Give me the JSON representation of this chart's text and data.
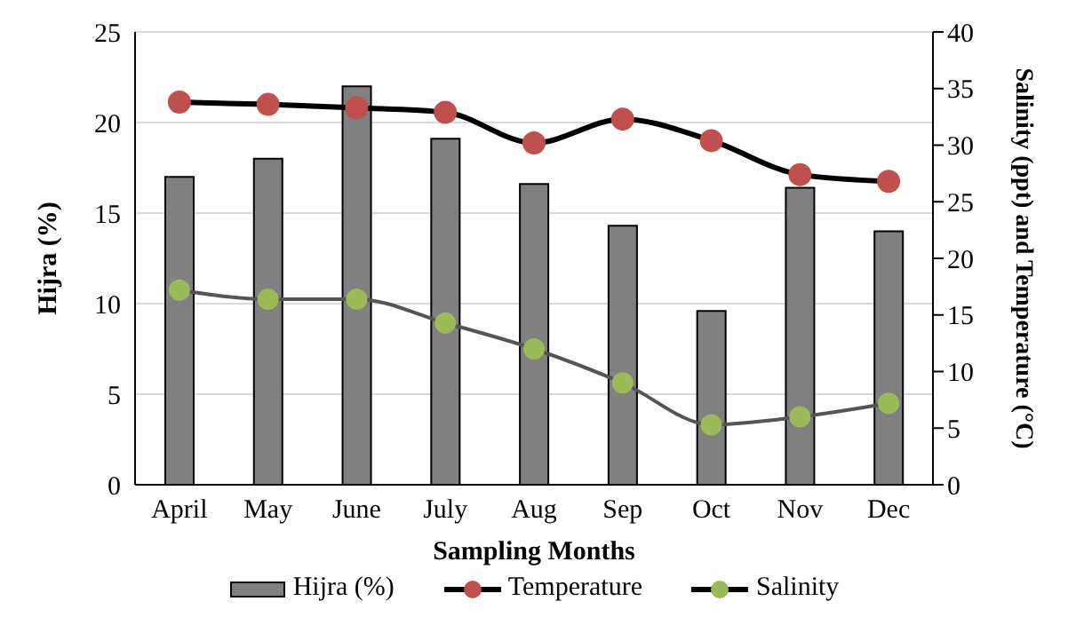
{
  "chart_data": {
    "type": "bar",
    "xlabel": "Sampling Months",
    "ylabel": "Hijra (%)",
    "y2label": "Salinity (ppt) and Temperature (°C)",
    "categories": [
      "April",
      "May",
      "June",
      "July",
      "Aug",
      "Sep",
      "Oct",
      "Nov",
      "Dec"
    ],
    "series": [
      {
        "name": "Hijra (%)",
        "color": "#808080",
        "values": [
          17.0,
          18.0,
          22.0,
          19.1,
          16.6,
          14.3,
          9.6,
          16.4,
          14.0
        ]
      },
      {
        "name": "Temperature",
        "type": "line",
        "axis": "y2",
        "color": "#c0504d",
        "values": [
          33.8,
          33.6,
          33.3,
          32.9,
          30.2,
          32.3,
          30.4,
          27.4,
          26.8
        ]
      },
      {
        "name": "Salinity",
        "type": "line",
        "axis": "y2",
        "color": "#9bbb59",
        "values": [
          17.2,
          16.4,
          16.4,
          14.3,
          12.0,
          9.0,
          5.3,
          6.0,
          7.2
        ]
      }
    ],
    "ylim": [
      0,
      25
    ],
    "yticks": [
      0,
      5,
      10,
      15,
      20,
      25
    ],
    "y2lim": [
      0,
      40
    ],
    "y2ticks": [
      0,
      5,
      10,
      15,
      20,
      25,
      30,
      35,
      40
    ],
    "grid": "y",
    "legend": "bottom",
    "marker": "circle"
  }
}
